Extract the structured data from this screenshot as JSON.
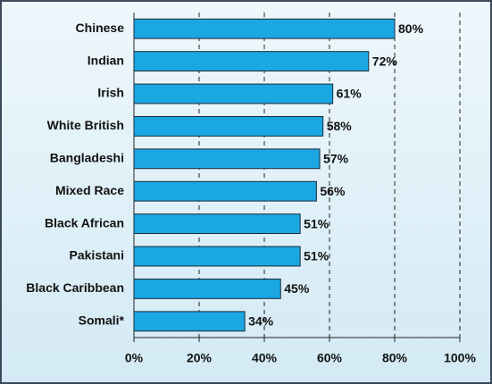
{
  "chart_data": {
    "type": "bar",
    "orientation": "horizontal",
    "categories": [
      "Chinese",
      "Indian",
      "Irish",
      "White British",
      "Bangladeshi",
      "Mixed Race",
      "Black African",
      "Pakistani",
      "Black Caribbean",
      "Somali*"
    ],
    "values": [
      80,
      72,
      61,
      58,
      57,
      56,
      51,
      51,
      45,
      34
    ],
    "value_labels": [
      "80%",
      "72%",
      "61%",
      "58%",
      "57%",
      "56%",
      "51%",
      "51%",
      "45%",
      "34%"
    ],
    "color": "#1aa7e2",
    "xlim": [
      0,
      100
    ],
    "xticks": [
      {
        "value": 0,
        "label": "0%"
      },
      {
        "value": 20,
        "label": "20%"
      },
      {
        "value": 40,
        "label": "40%"
      },
      {
        "value": 60,
        "label": "60%"
      },
      {
        "value": 80,
        "label": "80%"
      },
      {
        "value": 100,
        "label": "100%"
      }
    ],
    "grid": true
  }
}
